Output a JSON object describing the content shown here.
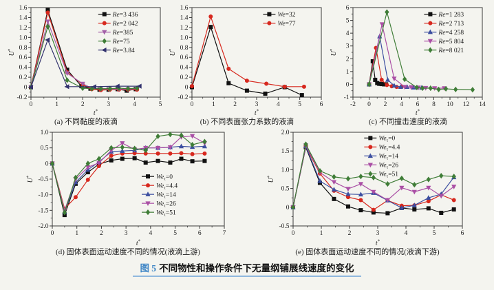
{
  "figure": {
    "title_label": "图 5",
    "title_text": "不同物性和操作条件下无量纲铺展线速度的变化",
    "accent_color": "#3f86c6"
  },
  "chart_data": [
    {
      "id": "a",
      "type": "line",
      "caption": "(a) 不同黏度的液滴",
      "xlabel": "t*",
      "ylabel": "U*",
      "xlim": [
        0,
        5
      ],
      "ylim": [
        -0.2,
        1.6
      ],
      "xticks": [
        "0",
        "1",
        "2",
        "3",
        "4",
        "5"
      ],
      "yticks": [
        "-0.2",
        "0",
        "0.2",
        "0.4",
        "0.6",
        "0.8",
        "1.0",
        "1.2",
        "1.4",
        "1.6"
      ],
      "grid": false,
      "legend": {
        "fx": 0.52,
        "fy": 0.02
      },
      "series": [
        {
          "name": "Re=3 436",
          "color": "#111111",
          "marker": "square",
          "x": [
            0,
            0.65,
            1.4,
            1.95,
            2.3,
            2.65,
            3.0,
            3.35,
            3.7,
            4.05
          ],
          "y": [
            0,
            1.55,
            0.35,
            0.02,
            -0.03,
            -0.05,
            -0.05,
            -0.04,
            -0.07,
            -0.04
          ]
        },
        {
          "name": "Re=2 042",
          "color": "#d7281e",
          "marker": "circle",
          "x": [
            0,
            0.65,
            1.4,
            2.0,
            2.35,
            2.7,
            3.05,
            3.4,
            3.75,
            4.1
          ],
          "y": [
            0,
            1.5,
            0.3,
            0.05,
            -0.04,
            -0.06,
            -0.05,
            -0.05,
            -0.05,
            -0.05
          ]
        },
        {
          "name": "Re=385",
          "color": "#a35fa8",
          "marker": "tri-down",
          "x": [
            0,
            0.65,
            1.4,
            2.0,
            2.35,
            2.7,
            3.05,
            3.4,
            3.75,
            4.1
          ],
          "y": [
            0,
            1.32,
            0.28,
            0.07,
            -0.02,
            -0.04,
            -0.04,
            -0.04,
            -0.04,
            -0.03
          ]
        },
        {
          "name": "Re=75",
          "color": "#3f7d37",
          "marker": "diamond",
          "x": [
            0,
            0.65,
            1.4,
            2.0,
            2.35,
            2.7,
            3.05,
            3.4,
            3.75,
            4.1
          ],
          "y": [
            0,
            1.22,
            0.14,
            -0.02,
            -0.03,
            -0.03,
            -0.03,
            -0.02,
            -0.03,
            -0.02
          ]
        },
        {
          "name": "Re=3.84",
          "color": "#32326e",
          "marker": "tri-left",
          "x": [
            0,
            0.65,
            1.4,
            2.45,
            3.35,
            4.2
          ],
          "y": [
            0,
            0.95,
            0.01,
            0.01,
            0.02,
            0.02
          ]
        }
      ]
    },
    {
      "id": "b",
      "type": "line",
      "caption": "(b) 不同表面张力系数的液滴",
      "xlabel": "t*",
      "ylabel": "U*",
      "xlim": [
        0,
        6
      ],
      "ylim": [
        -0.2,
        1.6
      ],
      "xticks": [
        "0",
        "1",
        "2",
        "3",
        "4",
        "5",
        "6"
      ],
      "yticks": [
        "-0.2",
        "0",
        "0.2",
        "0.4",
        "0.6",
        "0.8",
        "1.0",
        "1.2",
        "1.4",
        "1.6"
      ],
      "grid": false,
      "legend": {
        "fx": 0.55,
        "fy": 0.02
      },
      "series": [
        {
          "name": "We=32",
          "color": "#111111",
          "marker": "square",
          "x": [
            0,
            0.87,
            1.7,
            2.55,
            3.4,
            4.3,
            5.1
          ],
          "y": [
            0,
            1.21,
            0.08,
            -0.07,
            -0.13,
            0.0,
            -0.16
          ]
        },
        {
          "name": "We=77",
          "color": "#d7281e",
          "marker": "circle",
          "x": [
            0,
            0.87,
            1.7,
            2.55,
            3.45,
            4.3,
            5.2
          ],
          "y": [
            0.02,
            1.42,
            0.37,
            0.13,
            0.07,
            0.01,
            0.01
          ]
        }
      ]
    },
    {
      "id": "c",
      "type": "line",
      "caption": "(c) 不同撞击速度的液滴",
      "xlabel": "t*",
      "ylabel": "U*",
      "xlim": [
        -2,
        14
      ],
      "ylim": [
        -1,
        6
      ],
      "xticks": [
        "-2",
        "0",
        "2",
        "4",
        "6",
        "8",
        "10",
        "12",
        "14"
      ],
      "yticks": [
        "-1",
        "0",
        "1",
        "2",
        "3",
        "4",
        "5",
        "6"
      ],
      "grid": false,
      "legend": {
        "fx": 0.55,
        "fy": 0.02
      },
      "series": [
        {
          "name": "Re=1 283",
          "color": "#111111",
          "marker": "square",
          "x": [
            0,
            0.45,
            0.75,
            1.0,
            1.25,
            1.55,
            1.85,
            2.1
          ],
          "y": [
            0,
            1.8,
            0.35,
            0.1,
            0.04,
            0.02,
            0.0,
            0.0
          ]
        },
        {
          "name": "Re=2 713",
          "color": "#d7281e",
          "marker": "circle",
          "x": [
            0,
            0.85,
            1.55,
            2.2,
            2.8,
            3.4,
            4.0
          ],
          "y": [
            0,
            2.85,
            0.35,
            -0.05,
            -0.15,
            -0.2,
            -0.2
          ]
        },
        {
          "name": "Re=4 258",
          "color": "#3c4fa0",
          "marker": "tri-up",
          "x": [
            0,
            1.3,
            2.3,
            3.1,
            3.9,
            4.7,
            5.5,
            6.5
          ],
          "y": [
            0,
            3.75,
            0.35,
            -0.1,
            -0.2,
            -0.2,
            -0.25,
            -0.27
          ]
        },
        {
          "name": "Re=5 804",
          "color": "#aa4fa5",
          "marker": "tri-down",
          "x": [
            0,
            1.6,
            3.1,
            4.4,
            5.2,
            6.1,
            7.0,
            8.1,
            9.3
          ],
          "y": [
            0,
            4.7,
            0.45,
            -0.2,
            -0.22,
            -0.25,
            -0.28,
            -0.3,
            -0.3
          ]
        },
        {
          "name": "Re=8 021",
          "color": "#3f7d37",
          "marker": "diamond",
          "x": [
            0,
            2.2,
            4.4,
            5.9,
            6.6,
            7.6,
            8.6,
            9.5,
            10.7,
            12.8
          ],
          "y": [
            0,
            5.65,
            0.4,
            -0.25,
            -0.3,
            -0.3,
            -0.4,
            -0.35,
            -0.4,
            -0.42
          ]
        }
      ]
    },
    {
      "id": "d",
      "type": "line",
      "caption": "(d) 固体表面运动速度不同的情况(液滴上游)",
      "xlabel": "t*",
      "ylabel": "U*",
      "xlim": [
        0,
        7
      ],
      "ylim": [
        -2.0,
        1.0
      ],
      "xticks": [
        "0",
        "1",
        "2",
        "3",
        "4",
        "5",
        "6",
        "7"
      ],
      "yticks": [
        "-2.0",
        "-1.5",
        "-1.0",
        "-0.5",
        "0",
        "0.5",
        "1.0"
      ],
      "grid": false,
      "legend": {
        "fx": 0.52,
        "fy": 0.42
      },
      "series": [
        {
          "name": "Weτ=0",
          "color": "#111111",
          "marker": "square",
          "x": [
            0,
            0.5,
            0.95,
            1.45,
            1.9,
            2.4,
            2.85,
            3.35,
            3.8,
            4.3,
            4.8,
            5.25,
            5.7,
            6.2
          ],
          "y": [
            0,
            -1.65,
            -0.65,
            -0.28,
            -0.02,
            0.1,
            0.15,
            0.17,
            0.03,
            0.08,
            0.03,
            0.15,
            0.07,
            0.08
          ]
        },
        {
          "name": "Weτ=4.4",
          "color": "#d7281e",
          "marker": "circle",
          "x": [
            0,
            0.5,
            0.95,
            1.45,
            1.9,
            2.4,
            2.85,
            3.35,
            3.8,
            4.3,
            4.8,
            5.25,
            5.7,
            6.2
          ],
          "y": [
            0,
            -1.45,
            -1.08,
            -0.52,
            -0.08,
            0.25,
            0.32,
            0.33,
            0.32,
            0.32,
            0.32,
            0.33,
            0.3,
            0.32
          ]
        },
        {
          "name": "Weτ=14",
          "color": "#3c4fa0",
          "marker": "tri-up",
          "x": [
            0,
            0.5,
            0.95,
            1.45,
            1.9,
            2.4,
            2.85,
            3.35,
            3.8,
            4.3,
            4.8,
            5.25,
            5.7,
            6.2
          ],
          "y": [
            0,
            -1.55,
            -0.6,
            -0.2,
            0.05,
            0.38,
            0.4,
            0.42,
            0.5,
            0.5,
            0.52,
            0.55,
            0.53,
            0.55
          ]
        },
        {
          "name": "Weτ=26",
          "color": "#aa4fa5",
          "marker": "tri-down",
          "x": [
            0,
            0.5,
            0.95,
            1.45,
            1.9,
            2.4,
            2.85,
            3.35,
            3.8,
            4.3,
            4.8,
            5.25,
            5.7,
            6.2
          ],
          "y": [
            0,
            -1.5,
            -0.5,
            -0.12,
            0.02,
            0.42,
            0.65,
            0.45,
            0.5,
            0.5,
            0.52,
            0.85,
            0.88,
            0.65
          ]
        },
        {
          "name": "Weτ=51",
          "color": "#3f7d37",
          "marker": "diamond",
          "x": [
            0,
            0.5,
            0.95,
            1.45,
            1.9,
            2.4,
            2.85,
            3.35,
            3.8,
            4.3,
            4.8,
            5.25,
            5.7,
            6.2
          ],
          "y": [
            0,
            -1.57,
            -0.45,
            0.0,
            0.15,
            0.5,
            0.52,
            0.48,
            0.42,
            0.87,
            0.93,
            0.9,
            0.6,
            0.7
          ]
        }
      ]
    },
    {
      "id": "e",
      "type": "line",
      "caption": "(e) 固体表面运动速度不同的情况(液滴下游)",
      "xlabel": "t*",
      "ylabel": "U*",
      "xlim": [
        0,
        6
      ],
      "ylim": [
        -0.5,
        2.0
      ],
      "xticks": [
        "0",
        "1",
        "2",
        "3",
        "4",
        "5",
        "6"
      ],
      "yticks": [
        "-0.5",
        "0",
        "0.5",
        "1.0",
        "1.5",
        "2.0"
      ],
      "grid": false,
      "legend": {
        "fx": 0.42,
        "fy": 0.01
      },
      "series": [
        {
          "name": "Weτ=0",
          "color": "#111111",
          "marker": "square",
          "x": [
            0,
            0.45,
            0.95,
            1.45,
            1.95,
            2.4,
            2.85,
            3.35,
            3.85,
            4.3,
            4.8,
            5.25,
            5.7
          ],
          "y": [
            0,
            1.6,
            0.65,
            0.22,
            0.02,
            -0.08,
            -0.14,
            -0.16,
            -0.02,
            -0.06,
            -0.03,
            -0.15,
            -0.06
          ]
        },
        {
          "name": "Weτ=4.4",
          "color": "#d7281e",
          "marker": "circle",
          "x": [
            0,
            0.45,
            0.95,
            1.45,
            1.95,
            2.4,
            2.85,
            3.35,
            3.85,
            4.3,
            4.8,
            5.25,
            5.7
          ],
          "y": [
            0,
            1.62,
            0.9,
            0.44,
            0.27,
            0.19,
            -0.07,
            0.18,
            0.04,
            0.05,
            0.16,
            0.33,
            0.19
          ]
        },
        {
          "name": "Weτ=14",
          "color": "#3c4fa0",
          "marker": "tri-up",
          "x": [
            0,
            0.45,
            0.95,
            1.45,
            1.95,
            2.4,
            2.85,
            3.35,
            3.85,
            4.3,
            4.8,
            5.25,
            5.7
          ],
          "y": [
            0,
            1.63,
            0.7,
            0.47,
            0.35,
            0.34,
            0.38,
            0.18,
            -0.02,
            0.05,
            0.25,
            0.35,
            0.8
          ]
        },
        {
          "name": "Weτ=26",
          "color": "#aa4fa5",
          "marker": "tri-down",
          "x": [
            0,
            0.45,
            0.95,
            1.45,
            1.95,
            2.4,
            2.85,
            3.35,
            3.85,
            4.3,
            4.8,
            5.25,
            5.7
          ],
          "y": [
            0,
            1.65,
            0.93,
            0.67,
            0.49,
            0.62,
            0.41,
            0.19,
            0.52,
            0.41,
            0.52,
            0.3,
            0.55
          ]
        },
        {
          "name": "Weτ=51",
          "color": "#3f7d37",
          "marker": "diamond",
          "x": [
            0,
            0.45,
            0.95,
            1.45,
            1.95,
            2.4,
            2.85,
            3.35,
            3.85,
            4.3,
            4.8,
            5.25,
            5.7
          ],
          "y": [
            0,
            1.68,
            0.97,
            0.81,
            0.76,
            0.82,
            0.79,
            0.62,
            0.77,
            0.6,
            0.74,
            0.84,
            0.82
          ]
        }
      ]
    }
  ]
}
